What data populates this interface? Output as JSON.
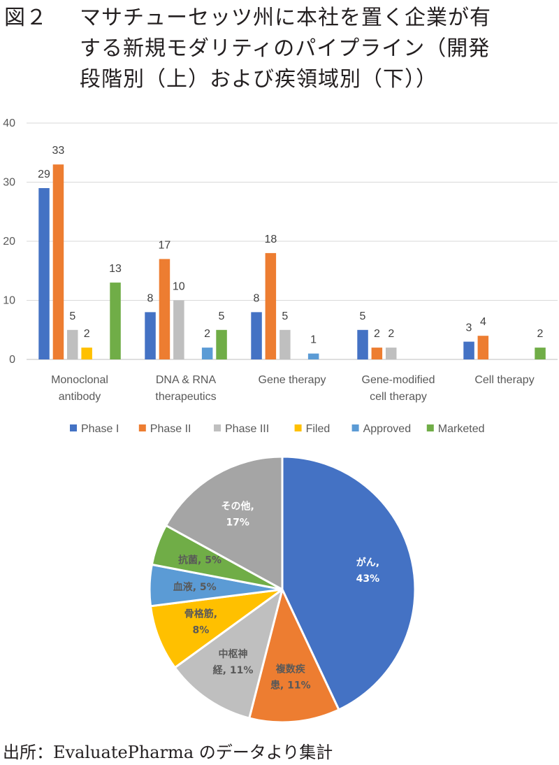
{
  "figure": {
    "title_number": "図２",
    "title_line1": "マサチューセッツ州に本社を置く企業が有",
    "title_line2": "する新規モダリティのパイプライン（開発",
    "title_line3": "段階別（上）および疾領域別（下））",
    "source": "出所：EvaluatePharma のデータより集計"
  },
  "chart_data": [
    {
      "type": "bar",
      "title": "",
      "xlabel": "",
      "ylabel": "",
      "ylim": [
        0,
        40
      ],
      "yticks": [
        0,
        10,
        20,
        30,
        40
      ],
      "grid": true,
      "legend_position": "bottom",
      "categories": [
        [
          "Monoclonal",
          "antibody"
        ],
        [
          "DNA & RNA",
          "therapeutics"
        ],
        [
          "Gene therapy"
        ],
        [
          "Gene-modified",
          "cell therapy"
        ],
        [
          "Cell therapy"
        ]
      ],
      "series": [
        {
          "name": "Phase I",
          "color": "#4472c4",
          "values": [
            29,
            8,
            8,
            5,
            3
          ]
        },
        {
          "name": "Phase II",
          "color": "#ed7d31",
          "values": [
            33,
            17,
            18,
            2,
            4
          ]
        },
        {
          "name": "Phase III",
          "color": "#bfbfbf",
          "values": [
            5,
            10,
            5,
            2,
            null
          ]
        },
        {
          "name": "Filed",
          "color": "#ffc000",
          "values": [
            2,
            null,
            null,
            null,
            null
          ]
        },
        {
          "name": "Approved",
          "color": "#5b9bd5",
          "values": [
            null,
            2,
            1,
            null,
            null
          ]
        },
        {
          "name": "Marketed",
          "color": "#70ad47",
          "values": [
            13,
            5,
            null,
            null,
            2
          ]
        }
      ]
    },
    {
      "type": "pie",
      "title": "",
      "start": "12 o'clock",
      "direction": "clockwise",
      "slices": [
        {
          "label": [
            "がん,",
            "43%"
          ],
          "value": 43,
          "color": "#4472c4",
          "text_color": "#ffffff"
        },
        {
          "label": [
            "複数疾",
            "患, 11%"
          ],
          "value": 11,
          "color": "#ed7d31",
          "text_color": "#595959"
        },
        {
          "label": [
            "中枢神",
            "経, 11%"
          ],
          "value": 11,
          "color": "#bfbfbf",
          "text_color": "#595959"
        },
        {
          "label": [
            "骨格筋,",
            "8%"
          ],
          "value": 8,
          "color": "#ffc000",
          "text_color": "#595959"
        },
        {
          "label": [
            "血液, 5%"
          ],
          "value": 5,
          "color": "#5b9bd5",
          "text_color": "#595959"
        },
        {
          "label": [
            "抗菌, 5%"
          ],
          "value": 5,
          "color": "#70ad47",
          "text_color": "#595959"
        },
        {
          "label": [
            "その他,",
            "17%"
          ],
          "value": 17,
          "color": "#a5a5a5",
          "text_color": "#ffffff"
        }
      ]
    }
  ]
}
